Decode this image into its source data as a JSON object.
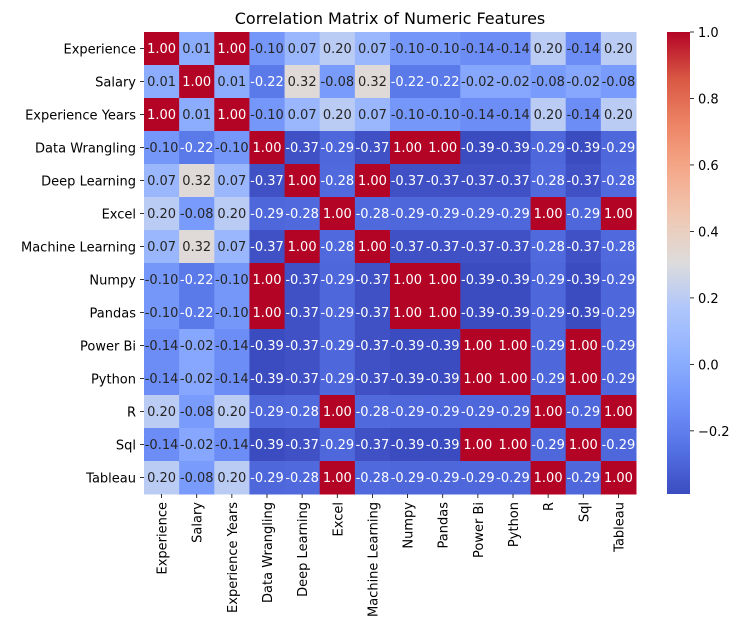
{
  "chart_data": {
    "type": "heatmap",
    "title": "Correlation Matrix of Numeric Features",
    "xlabel": "",
    "ylabel": "",
    "labels": [
      "Experience",
      "Salary",
      "Experience Years",
      "Data Wrangling",
      "Deep Learning",
      "Excel",
      "Machine Learning",
      "Numpy",
      "Pandas",
      "Power Bi",
      "Python",
      "R",
      "Sql",
      "Tableau"
    ],
    "matrix": [
      [
        1.0,
        0.01,
        1.0,
        -0.1,
        0.07,
        0.2,
        0.07,
        -0.1,
        -0.1,
        -0.14,
        -0.14,
        0.2,
        -0.14,
        0.2
      ],
      [
        0.01,
        1.0,
        0.01,
        -0.22,
        0.32,
        -0.08,
        0.32,
        -0.22,
        -0.22,
        -0.02,
        -0.02,
        -0.08,
        -0.02,
        -0.08
      ],
      [
        1.0,
        0.01,
        1.0,
        -0.1,
        0.07,
        0.2,
        0.07,
        -0.1,
        -0.1,
        -0.14,
        -0.14,
        0.2,
        -0.14,
        0.2
      ],
      [
        -0.1,
        -0.22,
        -0.1,
        1.0,
        -0.37,
        -0.29,
        -0.37,
        1.0,
        1.0,
        -0.39,
        -0.39,
        -0.29,
        -0.39,
        -0.29
      ],
      [
        0.07,
        0.32,
        0.07,
        -0.37,
        1.0,
        -0.28,
        1.0,
        -0.37,
        -0.37,
        -0.37,
        -0.37,
        -0.28,
        -0.37,
        -0.28
      ],
      [
        0.2,
        -0.08,
        0.2,
        -0.29,
        -0.28,
        1.0,
        -0.28,
        -0.29,
        -0.29,
        -0.29,
        -0.29,
        1.0,
        -0.29,
        1.0
      ],
      [
        0.07,
        0.32,
        0.07,
        -0.37,
        1.0,
        -0.28,
        1.0,
        -0.37,
        -0.37,
        -0.37,
        -0.37,
        -0.28,
        -0.37,
        -0.28
      ],
      [
        -0.1,
        -0.22,
        -0.1,
        1.0,
        -0.37,
        -0.29,
        -0.37,
        1.0,
        1.0,
        -0.39,
        -0.39,
        -0.29,
        -0.39,
        -0.29
      ],
      [
        -0.1,
        -0.22,
        -0.1,
        1.0,
        -0.37,
        -0.29,
        -0.37,
        1.0,
        1.0,
        -0.39,
        -0.39,
        -0.29,
        -0.39,
        -0.29
      ],
      [
        -0.14,
        -0.02,
        -0.14,
        -0.39,
        -0.37,
        -0.29,
        -0.37,
        -0.39,
        -0.39,
        1.0,
        1.0,
        -0.29,
        1.0,
        -0.29
      ],
      [
        -0.14,
        -0.02,
        -0.14,
        -0.39,
        -0.37,
        -0.29,
        -0.37,
        -0.39,
        -0.39,
        1.0,
        1.0,
        -0.29,
        1.0,
        -0.29
      ],
      [
        0.2,
        -0.08,
        0.2,
        -0.29,
        -0.28,
        1.0,
        -0.28,
        -0.29,
        -0.29,
        -0.29,
        -0.29,
        1.0,
        -0.29,
        1.0
      ],
      [
        -0.14,
        -0.02,
        -0.14,
        -0.39,
        -0.37,
        -0.29,
        -0.37,
        -0.39,
        -0.39,
        1.0,
        1.0,
        -0.29,
        1.0,
        -0.29
      ],
      [
        0.2,
        -0.08,
        0.2,
        -0.29,
        -0.28,
        1.0,
        -0.28,
        -0.29,
        -0.29,
        -0.29,
        -0.29,
        1.0,
        -0.29,
        1.0
      ]
    ],
    "annotation_format": "2 decimals",
    "colormap": "coolwarm",
    "vmin": -0.39,
    "vmax": 1.0,
    "colorbar": {
      "ticks": [
        -0.2,
        0.0,
        0.2,
        0.4,
        0.6,
        0.8,
        1.0
      ],
      "tick_labels": [
        "−0.2",
        "0.0",
        "0.2",
        "0.4",
        "0.6",
        "0.8",
        "1.0"
      ],
      "placement": "right"
    },
    "grid": false
  }
}
